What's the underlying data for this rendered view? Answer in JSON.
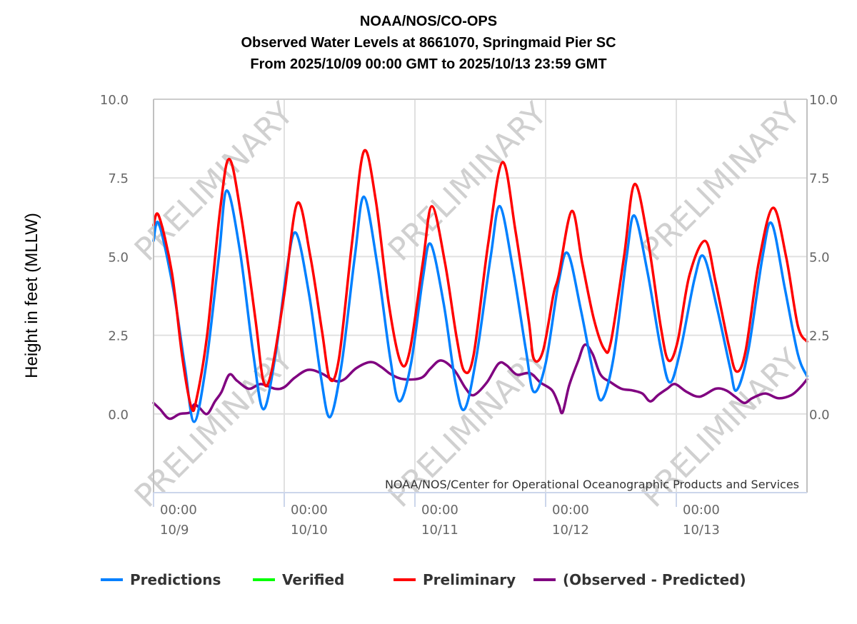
{
  "chart_data": {
    "type": "line",
    "title_lines": [
      "NOAA/NOS/CO-OPS",
      "Observed Water Levels at 8661070, Springmaid Pier SC",
      "From 2025/10/09 00:00 GMT to 2025/10/13 23:59 GMT"
    ],
    "ylabel": "Height in feet (MLLW)",
    "xlabel": "",
    "ylim": [
      -2.5,
      10.0
    ],
    "yticks": [
      "10.0",
      "7.5",
      "5.0",
      "2.5",
      "0.0"
    ],
    "ytick_values": [
      10.0,
      7.5,
      5.0,
      2.5,
      0.0
    ],
    "xlim_days": [
      0,
      5
    ],
    "xticks": [
      {
        "day": 0,
        "time": "00:00",
        "date": "10/9"
      },
      {
        "day": 1,
        "time": "00:00",
        "date": "10/10"
      },
      {
        "day": 2,
        "time": "00:00",
        "date": "10/11"
      },
      {
        "day": 3,
        "time": "00:00",
        "date": "10/12"
      },
      {
        "day": 4,
        "time": "00:00",
        "date": "10/13"
      }
    ],
    "x_units": "days since 2025/10/09 00:00 GMT",
    "grid": true,
    "watermark": "PRELIMINARY",
    "credit": "NOAA/NOS/Center for Operational Oceanographic Products and Services",
    "legend_position": "bottom",
    "series": [
      {
        "name": "Predictions",
        "color": "#0080ff",
        "points": [
          [
            0.0,
            5.5
          ],
          [
            0.04,
            6.05
          ],
          [
            0.15,
            4.0
          ],
          [
            0.24,
            1.5
          ],
          [
            0.31,
            -0.25
          ],
          [
            0.4,
            1.5
          ],
          [
            0.5,
            5.0
          ],
          [
            0.56,
            7.1
          ],
          [
            0.66,
            5.2
          ],
          [
            0.76,
            2.0
          ],
          [
            0.84,
            0.15
          ],
          [
            0.93,
            1.8
          ],
          [
            1.02,
            4.6
          ],
          [
            1.09,
            5.75
          ],
          [
            1.19,
            3.8
          ],
          [
            1.28,
            1.2
          ],
          [
            1.35,
            -0.1
          ],
          [
            1.44,
            1.6
          ],
          [
            1.54,
            5.0
          ],
          [
            1.61,
            6.9
          ],
          [
            1.71,
            4.8
          ],
          [
            1.81,
            1.8
          ],
          [
            1.88,
            0.4
          ],
          [
            1.97,
            1.6
          ],
          [
            2.06,
            4.3
          ],
          [
            2.12,
            5.4
          ],
          [
            2.22,
            3.5
          ],
          [
            2.31,
            1.0
          ],
          [
            2.38,
            0.15
          ],
          [
            2.47,
            1.8
          ],
          [
            2.58,
            5.0
          ],
          [
            2.65,
            6.6
          ],
          [
            2.75,
            4.6
          ],
          [
            2.85,
            2.0
          ],
          [
            2.91,
            0.7
          ],
          [
            3.0,
            1.6
          ],
          [
            3.1,
            4.2
          ],
          [
            3.17,
            5.1
          ],
          [
            3.27,
            3.3
          ],
          [
            3.37,
            1.2
          ],
          [
            3.43,
            0.45
          ],
          [
            3.52,
            1.8
          ],
          [
            3.62,
            5.0
          ],
          [
            3.68,
            6.3
          ],
          [
            3.78,
            4.5
          ],
          [
            3.88,
            2.1
          ],
          [
            3.95,
            1.0
          ],
          [
            4.03,
            2.0
          ],
          [
            4.14,
            4.3
          ],
          [
            4.21,
            5.0
          ],
          [
            4.31,
            3.4
          ],
          [
            4.41,
            1.5
          ],
          [
            4.46,
            0.75
          ],
          [
            4.55,
            2.0
          ],
          [
            4.66,
            5.0
          ],
          [
            4.73,
            6.05
          ],
          [
            4.83,
            4.0
          ],
          [
            4.93,
            1.9
          ],
          [
            5.0,
            1.2
          ]
        ]
      },
      {
        "name": "Verified",
        "color": "#00ff00",
        "points": []
      },
      {
        "name": "Preliminary",
        "color": "#ff0000",
        "points": [
          [
            0.0,
            6.0
          ],
          [
            0.04,
            6.3
          ],
          [
            0.14,
            4.5
          ],
          [
            0.22,
            1.8
          ],
          [
            0.29,
            0.2
          ],
          [
            0.33,
            0.5
          ],
          [
            0.41,
            2.5
          ],
          [
            0.51,
            6.5
          ],
          [
            0.58,
            8.1
          ],
          [
            0.67,
            6.3
          ],
          [
            0.78,
            3.0
          ],
          [
            0.84,
            1.05
          ],
          [
            0.9,
            1.3
          ],
          [
            1.0,
            3.8
          ],
          [
            1.1,
            6.7
          ],
          [
            1.2,
            5.0
          ],
          [
            1.29,
            2.6
          ],
          [
            1.35,
            1.1
          ],
          [
            1.42,
            1.8
          ],
          [
            1.52,
            5.5
          ],
          [
            1.61,
            8.35
          ],
          [
            1.7,
            6.8
          ],
          [
            1.8,
            3.5
          ],
          [
            1.89,
            1.65
          ],
          [
            1.96,
            2.0
          ],
          [
            2.06,
            4.8
          ],
          [
            2.13,
            6.6
          ],
          [
            2.23,
            4.8
          ],
          [
            2.32,
            2.4
          ],
          [
            2.38,
            1.35
          ],
          [
            2.45,
            1.9
          ],
          [
            2.56,
            5.4
          ],
          [
            2.67,
            8.0
          ],
          [
            2.77,
            5.8
          ],
          [
            2.87,
            3.0
          ],
          [
            2.91,
            1.75
          ],
          [
            2.98,
            2.0
          ],
          [
            3.06,
            3.8
          ],
          [
            3.1,
            4.4
          ],
          [
            3.2,
            6.45
          ],
          [
            3.28,
            4.8
          ],
          [
            3.37,
            3.0
          ],
          [
            3.45,
            2.05
          ],
          [
            3.5,
            2.3
          ],
          [
            3.6,
            5.0
          ],
          [
            3.68,
            7.3
          ],
          [
            3.78,
            5.6
          ],
          [
            3.88,
            2.8
          ],
          [
            3.94,
            1.7
          ],
          [
            4.01,
            2.3
          ],
          [
            4.1,
            4.4
          ],
          [
            4.22,
            5.5
          ],
          [
            4.3,
            4.2
          ],
          [
            4.4,
            2.2
          ],
          [
            4.46,
            1.35
          ],
          [
            4.53,
            2.0
          ],
          [
            4.63,
            4.8
          ],
          [
            4.74,
            6.55
          ],
          [
            4.84,
            5.0
          ],
          [
            4.93,
            2.8
          ],
          [
            5.0,
            2.3
          ]
        ]
      },
      {
        "name": "(Observed - Predicted)",
        "color": "#800080",
        "points": [
          [
            0.0,
            0.35
          ],
          [
            0.05,
            0.15
          ],
          [
            0.12,
            -0.15
          ],
          [
            0.2,
            0.0
          ],
          [
            0.28,
            0.05
          ],
          [
            0.31,
            0.3
          ],
          [
            0.35,
            0.2
          ],
          [
            0.41,
            0.0
          ],
          [
            0.47,
            0.4
          ],
          [
            0.52,
            0.7
          ],
          [
            0.58,
            1.25
          ],
          [
            0.64,
            1.05
          ],
          [
            0.73,
            0.8
          ],
          [
            0.82,
            0.95
          ],
          [
            0.93,
            0.8
          ],
          [
            1.0,
            0.85
          ],
          [
            1.08,
            1.15
          ],
          [
            1.18,
            1.4
          ],
          [
            1.28,
            1.3
          ],
          [
            1.39,
            1.05
          ],
          [
            1.46,
            1.1
          ],
          [
            1.55,
            1.45
          ],
          [
            1.66,
            1.65
          ],
          [
            1.74,
            1.5
          ],
          [
            1.82,
            1.25
          ],
          [
            1.92,
            1.1
          ],
          [
            2.05,
            1.15
          ],
          [
            2.12,
            1.45
          ],
          [
            2.2,
            1.7
          ],
          [
            2.3,
            1.4
          ],
          [
            2.39,
            0.8
          ],
          [
            2.45,
            0.6
          ],
          [
            2.55,
            1.0
          ],
          [
            2.64,
            1.6
          ],
          [
            2.7,
            1.55
          ],
          [
            2.78,
            1.25
          ],
          [
            2.88,
            1.3
          ],
          [
            2.96,
            1.0
          ],
          [
            3.05,
            0.75
          ],
          [
            3.1,
            0.3
          ],
          [
            3.13,
            0.05
          ],
          [
            3.18,
            0.9
          ],
          [
            3.25,
            1.7
          ],
          [
            3.3,
            2.2
          ],
          [
            3.36,
            1.9
          ],
          [
            3.42,
            1.25
          ],
          [
            3.5,
            1.0
          ],
          [
            3.58,
            0.8
          ],
          [
            3.66,
            0.75
          ],
          [
            3.74,
            0.65
          ],
          [
            3.8,
            0.4
          ],
          [
            3.86,
            0.6
          ],
          [
            3.93,
            0.8
          ],
          [
            3.99,
            0.95
          ],
          [
            4.08,
            0.7
          ],
          [
            4.18,
            0.55
          ],
          [
            4.3,
            0.8
          ],
          [
            4.38,
            0.75
          ],
          [
            4.45,
            0.55
          ],
          [
            4.52,
            0.35
          ],
          [
            4.58,
            0.5
          ],
          [
            4.68,
            0.65
          ],
          [
            4.78,
            0.5
          ],
          [
            4.88,
            0.6
          ],
          [
            4.95,
            0.85
          ],
          [
            5.0,
            1.1
          ]
        ]
      }
    ]
  },
  "legend": [
    {
      "label": "Predictions",
      "color": "#0080ff"
    },
    {
      "label": "Verified",
      "color": "#00ff00"
    },
    {
      "label": "Preliminary",
      "color": "#ff0000"
    },
    {
      "label": "(Observed - Predicted)",
      "color": "#800080"
    }
  ]
}
